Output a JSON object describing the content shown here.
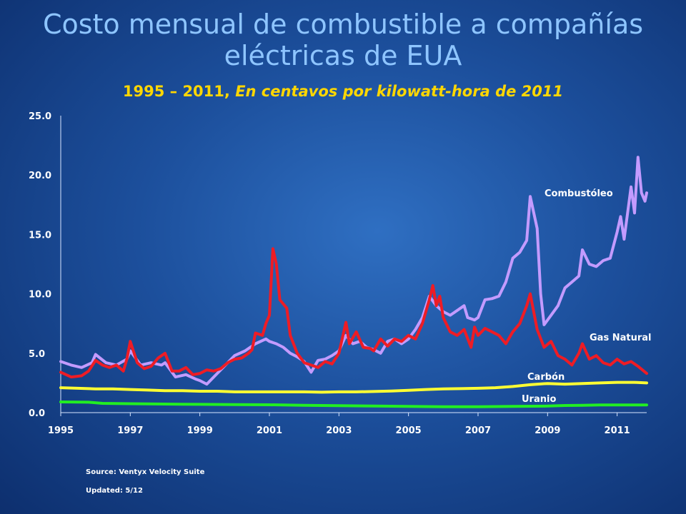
{
  "header": {
    "title_line1": "Costo mensual de combustible a compañías",
    "title_line2": "eléctricas de EUA",
    "subtitle_plain": "1995 – 2011, ",
    "subtitle_italic": "En centavos por kilowatt-hora de 2011"
  },
  "footer": {
    "source": "Source: Ventyx Velocity Suite",
    "updated": "Updated: 5/12"
  },
  "chart_data": {
    "type": "line",
    "ylim": [
      0,
      25
    ],
    "xlim": [
      1995,
      2011.85
    ],
    "y_ticks": [
      "0.0",
      "5.0",
      "10.0",
      "15.0",
      "20.0",
      "25.0"
    ],
    "x_ticks": [
      "1995",
      "1997",
      "1999",
      "2001",
      "2003",
      "2005",
      "2007",
      "2009",
      "2011"
    ],
    "grid": false,
    "series": [
      {
        "name": "Combustóleo",
        "color": "#c39bff",
        "points": [
          [
            1995,
            4.3
          ],
          [
            1995.3,
            4.0
          ],
          [
            1995.6,
            3.8
          ],
          [
            1995.9,
            4.2
          ],
          [
            1996.0,
            4.9
          ],
          [
            1996.3,
            4.2
          ],
          [
            1996.6,
            4.0
          ],
          [
            1996.9,
            4.5
          ],
          [
            1997.0,
            5.2
          ],
          [
            1997.3,
            4.0
          ],
          [
            1997.6,
            4.2
          ],
          [
            1997.9,
            4.0
          ],
          [
            1998.0,
            4.2
          ],
          [
            1998.3,
            3.0
          ],
          [
            1998.6,
            3.2
          ],
          [
            1998.9,
            2.8
          ],
          [
            1999.0,
            2.7
          ],
          [
            1999.2,
            2.4
          ],
          [
            1999.4,
            3.0
          ],
          [
            1999.6,
            3.6
          ],
          [
            1999.8,
            4.2
          ],
          [
            2000.0,
            4.8
          ],
          [
            2000.3,
            5.2
          ],
          [
            2000.6,
            5.8
          ],
          [
            2000.9,
            6.2
          ],
          [
            2001.0,
            6.0
          ],
          [
            2001.2,
            5.8
          ],
          [
            2001.4,
            5.5
          ],
          [
            2001.6,
            5.0
          ],
          [
            2001.8,
            4.7
          ],
          [
            2002.0,
            4.3
          ],
          [
            2002.2,
            3.4
          ],
          [
            2002.4,
            4.4
          ],
          [
            2002.6,
            4.5
          ],
          [
            2002.8,
            4.8
          ],
          [
            2003.0,
            5.2
          ],
          [
            2003.2,
            6.5
          ],
          [
            2003.4,
            5.8
          ],
          [
            2003.6,
            6.0
          ],
          [
            2003.8,
            5.5
          ],
          [
            2004.0,
            5.3
          ],
          [
            2004.2,
            5.0
          ],
          [
            2004.4,
            6.0
          ],
          [
            2004.6,
            6.2
          ],
          [
            2004.8,
            5.8
          ],
          [
            2005.0,
            6.2
          ],
          [
            2005.2,
            7.0
          ],
          [
            2005.4,
            8.0
          ],
          [
            2005.6,
            9.8
          ],
          [
            2005.8,
            9.0
          ],
          [
            2006.0,
            8.5
          ],
          [
            2006.2,
            8.2
          ],
          [
            2006.4,
            8.6
          ],
          [
            2006.6,
            9.0
          ],
          [
            2006.7,
            8.0
          ],
          [
            2006.9,
            7.8
          ],
          [
            2007.0,
            8.0
          ],
          [
            2007.2,
            9.5
          ],
          [
            2007.4,
            9.6
          ],
          [
            2007.6,
            9.8
          ],
          [
            2007.8,
            11.0
          ],
          [
            2008.0,
            13.0
          ],
          [
            2008.2,
            13.5
          ],
          [
            2008.4,
            14.5
          ],
          [
            2008.5,
            18.2
          ],
          [
            2008.7,
            15.5
          ],
          [
            2008.8,
            10.0
          ],
          [
            2008.9,
            7.4
          ],
          [
            2009.1,
            8.2
          ],
          [
            2009.3,
            9.0
          ],
          [
            2009.5,
            10.5
          ],
          [
            2009.7,
            11.0
          ],
          [
            2009.9,
            11.5
          ],
          [
            2010.0,
            13.7
          ],
          [
            2010.2,
            12.5
          ],
          [
            2010.4,
            12.3
          ],
          [
            2010.6,
            12.8
          ],
          [
            2010.8,
            13.0
          ],
          [
            2011.0,
            15.2
          ],
          [
            2011.1,
            16.5
          ],
          [
            2011.2,
            14.6
          ],
          [
            2011.4,
            19.0
          ],
          [
            2011.5,
            16.8
          ],
          [
            2011.6,
            21.5
          ],
          [
            2011.7,
            18.5
          ],
          [
            2011.8,
            17.8
          ],
          [
            2011.85,
            18.5
          ]
        ]
      },
      {
        "name": "Gas Natural",
        "color": "#ee1c25",
        "points": [
          [
            1995,
            3.4
          ],
          [
            1995.3,
            3.0
          ],
          [
            1995.6,
            3.1
          ],
          [
            1995.8,
            3.5
          ],
          [
            1996.0,
            4.4
          ],
          [
            1996.2,
            4.0
          ],
          [
            1996.4,
            3.8
          ],
          [
            1996.6,
            4.0
          ],
          [
            1996.8,
            3.5
          ],
          [
            1996.9,
            4.5
          ],
          [
            1997.0,
            6.0
          ],
          [
            1997.2,
            4.2
          ],
          [
            1997.4,
            3.7
          ],
          [
            1997.6,
            3.9
          ],
          [
            1997.8,
            4.6
          ],
          [
            1998.0,
            5.0
          ],
          [
            1998.2,
            3.5
          ],
          [
            1998.4,
            3.5
          ],
          [
            1998.6,
            3.8
          ],
          [
            1998.8,
            3.2
          ],
          [
            1999.0,
            3.3
          ],
          [
            1999.2,
            3.6
          ],
          [
            1999.4,
            3.5
          ],
          [
            1999.6,
            3.7
          ],
          [
            1999.8,
            4.2
          ],
          [
            2000.0,
            4.5
          ],
          [
            2000.2,
            4.6
          ],
          [
            2000.4,
            5.0
          ],
          [
            2000.5,
            5.3
          ],
          [
            2000.6,
            6.7
          ],
          [
            2000.8,
            6.5
          ],
          [
            2000.9,
            7.5
          ],
          [
            2001.0,
            8.2
          ],
          [
            2001.1,
            13.8
          ],
          [
            2001.2,
            12.5
          ],
          [
            2001.3,
            9.5
          ],
          [
            2001.5,
            8.8
          ],
          [
            2001.6,
            6.5
          ],
          [
            2001.8,
            5.0
          ],
          [
            2002.0,
            4.2
          ],
          [
            2002.2,
            4.0
          ],
          [
            2002.4,
            3.8
          ],
          [
            2002.6,
            4.3
          ],
          [
            2002.8,
            4.1
          ],
          [
            2003.0,
            5.0
          ],
          [
            2003.2,
            7.6
          ],
          [
            2003.3,
            5.8
          ],
          [
            2003.5,
            6.8
          ],
          [
            2003.7,
            5.5
          ],
          [
            2003.9,
            5.4
          ],
          [
            2004.0,
            5.2
          ],
          [
            2004.2,
            6.2
          ],
          [
            2004.4,
            5.6
          ],
          [
            2004.6,
            6.2
          ],
          [
            2004.8,
            6.0
          ],
          [
            2005.0,
            6.5
          ],
          [
            2005.2,
            6.2
          ],
          [
            2005.4,
            7.5
          ],
          [
            2005.6,
            9.5
          ],
          [
            2005.7,
            10.7
          ],
          [
            2005.8,
            9.0
          ],
          [
            2005.9,
            9.8
          ],
          [
            2006.0,
            8.0
          ],
          [
            2006.2,
            6.8
          ],
          [
            2006.4,
            6.5
          ],
          [
            2006.6,
            7.0
          ],
          [
            2006.8,
            5.5
          ],
          [
            2006.9,
            7.2
          ],
          [
            2007.0,
            6.5
          ],
          [
            2007.2,
            7.1
          ],
          [
            2007.4,
            6.8
          ],
          [
            2007.6,
            6.5
          ],
          [
            2007.8,
            5.8
          ],
          [
            2008.0,
            6.8
          ],
          [
            2008.2,
            7.5
          ],
          [
            2008.4,
            9.0
          ],
          [
            2008.5,
            10.0
          ],
          [
            2008.7,
            7.0
          ],
          [
            2008.9,
            5.5
          ],
          [
            2009.1,
            6.0
          ],
          [
            2009.3,
            4.8
          ],
          [
            2009.5,
            4.5
          ],
          [
            2009.7,
            4.0
          ],
          [
            2009.9,
            5.0
          ],
          [
            2010.0,
            5.8
          ],
          [
            2010.2,
            4.5
          ],
          [
            2010.4,
            4.8
          ],
          [
            2010.6,
            4.2
          ],
          [
            2010.8,
            4.0
          ],
          [
            2011.0,
            4.5
          ],
          [
            2011.2,
            4.1
          ],
          [
            2011.4,
            4.3
          ],
          [
            2011.6,
            3.9
          ],
          [
            2011.85,
            3.3
          ]
        ]
      },
      {
        "name": "Carbón",
        "color": "#ffff33",
        "points": [
          [
            1995,
            2.1
          ],
          [
            1995.5,
            2.05
          ],
          [
            1996,
            2.0
          ],
          [
            1996.5,
            2.0
          ],
          [
            1997,
            1.95
          ],
          [
            1997.5,
            1.9
          ],
          [
            1998,
            1.85
          ],
          [
            1998.5,
            1.85
          ],
          [
            1999,
            1.8
          ],
          [
            1999.5,
            1.8
          ],
          [
            2000,
            1.75
          ],
          [
            2000.5,
            1.75
          ],
          [
            2001,
            1.75
          ],
          [
            2001.5,
            1.75
          ],
          [
            2002,
            1.75
          ],
          [
            2002.5,
            1.72
          ],
          [
            2003,
            1.75
          ],
          [
            2003.5,
            1.75
          ],
          [
            2004,
            1.78
          ],
          [
            2004.5,
            1.82
          ],
          [
            2005,
            1.88
          ],
          [
            2005.5,
            1.95
          ],
          [
            2006,
            2.0
          ],
          [
            2006.5,
            2.02
          ],
          [
            2007,
            2.05
          ],
          [
            2007.5,
            2.1
          ],
          [
            2008,
            2.2
          ],
          [
            2008.5,
            2.35
          ],
          [
            2009,
            2.45
          ],
          [
            2009.5,
            2.4
          ],
          [
            2010,
            2.45
          ],
          [
            2010.5,
            2.5
          ],
          [
            2011,
            2.55
          ],
          [
            2011.5,
            2.55
          ],
          [
            2011.85,
            2.5
          ]
        ]
      },
      {
        "name": "Uranio",
        "color": "#22ee22",
        "points": [
          [
            1995,
            0.9
          ],
          [
            1995.8,
            0.88
          ],
          [
            1996.2,
            0.78
          ],
          [
            1997,
            0.75
          ],
          [
            1998,
            0.72
          ],
          [
            1999,
            0.7
          ],
          [
            2000,
            0.68
          ],
          [
            2001,
            0.66
          ],
          [
            2002,
            0.62
          ],
          [
            2003,
            0.58
          ],
          [
            2004,
            0.56
          ],
          [
            2005,
            0.52
          ],
          [
            2006,
            0.5
          ],
          [
            2007,
            0.5
          ],
          [
            2008,
            0.52
          ],
          [
            2009,
            0.55
          ],
          [
            2009.5,
            0.6
          ],
          [
            2010,
            0.62
          ],
          [
            2010.5,
            0.65
          ],
          [
            2011,
            0.65
          ],
          [
            2011.85,
            0.65
          ]
        ]
      }
    ]
  }
}
